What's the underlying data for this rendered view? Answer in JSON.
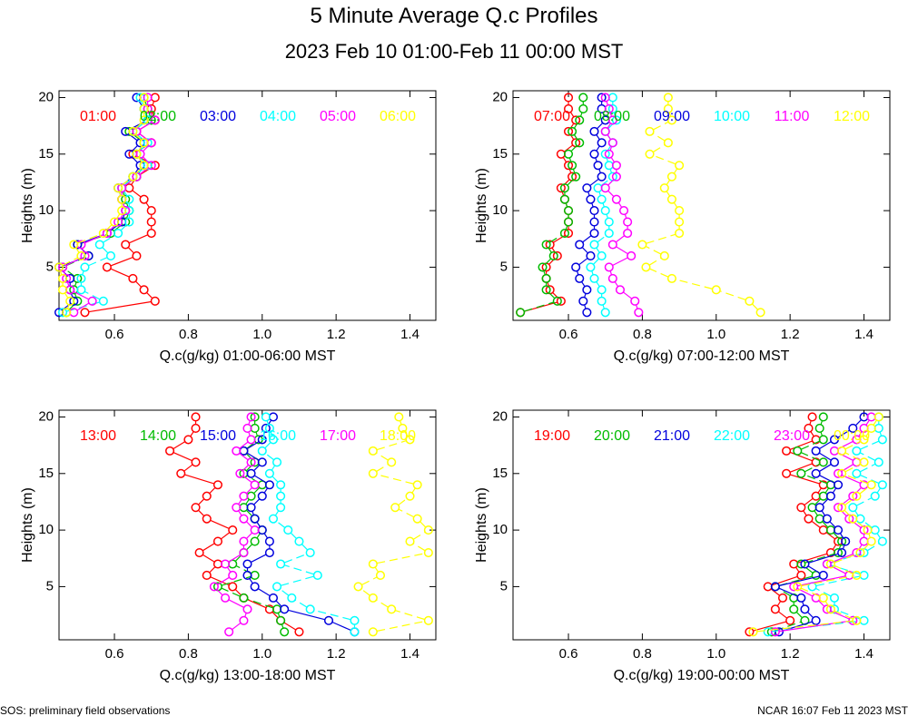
{
  "header": {
    "title": "5 Minute Average Q.c Profiles",
    "subtitle": "2023 Feb 10 01:00-Feb 11 00:00 MST"
  },
  "footer": {
    "left": "SOS: preliminary field observations",
    "right": "NCAR 16:07 Feb 11 2023 MST"
  },
  "colors": [
    "#ff0000",
    "#00bb00",
    "#0000dd",
    "#00ffff",
    "#ff00ff",
    "#ffff00"
  ],
  "chart_data": [
    {
      "type": "line",
      "title": "",
      "xlabel": "Q.c(g/kg) 01:00-06:00 MST",
      "ylabel": "Heights (m)",
      "xlim": [
        0.45,
        1.47
      ],
      "ylim": [
        0.3,
        20.6
      ],
      "xticks": [
        "0.6",
        "0.8",
        "1.0",
        "1.2",
        "1.4"
      ],
      "yticks": [
        "5",
        "10",
        "15",
        "20"
      ],
      "heights": [
        1,
        2,
        3,
        4,
        5,
        6,
        7,
        8,
        9,
        10,
        11,
        12,
        13,
        14,
        15,
        16,
        17,
        18,
        19,
        20
      ],
      "series": [
        {
          "name": "01:00",
          "values": [
            0.52,
            0.71,
            0.68,
            0.65,
            0.58,
            0.66,
            0.63,
            0.7,
            0.7,
            0.7,
            0.68,
            0.64,
            0.66,
            0.71,
            0.65,
            0.7,
            0.66,
            0.71,
            0.7,
            0.71
          ]
        },
        {
          "name": "02:00",
          "values": [
            0.47,
            0.5,
            0.49,
            0.5,
            0.46,
            0.53,
            0.5,
            0.59,
            0.63,
            0.64,
            0.63,
            0.62,
            0.66,
            0.68,
            0.66,
            0.68,
            0.64,
            0.7,
            0.69,
            0.68
          ]
        },
        {
          "name": "03:00",
          "values": [
            0.45,
            0.49,
            0.48,
            0.48,
            0.45,
            0.53,
            0.5,
            0.58,
            0.62,
            0.63,
            0.62,
            0.61,
            0.65,
            0.67,
            0.64,
            0.67,
            0.63,
            0.69,
            0.68,
            0.66
          ]
        },
        {
          "name": "04:00",
          "values": [
            0.46,
            0.57,
            0.51,
            0.51,
            0.52,
            0.59,
            0.56,
            0.61,
            0.64,
            0.64,
            0.64,
            0.62,
            0.65,
            0.69,
            0.66,
            0.69,
            0.65,
            0.69,
            0.68,
            0.67
          ]
        },
        {
          "name": "05:00",
          "values": [
            0.49,
            0.54,
            0.48,
            0.47,
            0.46,
            0.52,
            0.51,
            0.58,
            0.61,
            0.63,
            0.62,
            0.62,
            0.66,
            0.7,
            0.67,
            0.7,
            0.66,
            0.71,
            0.69,
            0.69
          ]
        },
        {
          "name": "06:00",
          "values": [
            0.47,
            0.48,
            0.46,
            0.46,
            0.45,
            0.51,
            0.49,
            0.57,
            0.6,
            0.62,
            0.62,
            0.61,
            0.65,
            0.68,
            0.66,
            0.68,
            0.65,
            0.68,
            0.68,
            0.68
          ]
        }
      ]
    },
    {
      "type": "line",
      "title": "",
      "xlabel": "Q.c(g/kg) 07:00-12:00 MST",
      "ylabel": "Heights (m)",
      "xlim": [
        0.45,
        1.47
      ],
      "ylim": [
        0.3,
        20.6
      ],
      "xticks": [
        "0.6",
        "0.8",
        "1.0",
        "1.2",
        "1.4"
      ],
      "yticks": [
        "5",
        "10",
        "15",
        "20"
      ],
      "heights": [
        1,
        2,
        3,
        4,
        5,
        6,
        7,
        8,
        9,
        10,
        11,
        12,
        13,
        14,
        15,
        16,
        17,
        18,
        19,
        20
      ],
      "series": [
        {
          "name": "07:00",
          "values": [
            0.47,
            0.58,
            0.55,
            0.54,
            0.54,
            0.57,
            0.55,
            0.6,
            0.6,
            0.6,
            0.59,
            0.58,
            0.61,
            0.6,
            0.58,
            0.62,
            0.6,
            0.62,
            0.6,
            0.6
          ]
        },
        {
          "name": "08:00",
          "values": [
            0.47,
            0.57,
            0.54,
            0.54,
            0.53,
            0.56,
            0.54,
            0.59,
            0.6,
            0.6,
            0.59,
            0.59,
            0.62,
            0.61,
            0.6,
            0.63,
            0.61,
            0.63,
            0.64,
            0.64
          ]
        },
        {
          "name": "09:00",
          "values": [
            0.65,
            0.64,
            0.65,
            0.63,
            0.62,
            0.66,
            0.63,
            0.67,
            0.67,
            0.67,
            0.66,
            0.65,
            0.69,
            0.68,
            0.67,
            0.69,
            0.67,
            0.7,
            0.69,
            0.69
          ]
        },
        {
          "name": "10:00",
          "values": [
            0.7,
            0.69,
            0.69,
            0.67,
            0.66,
            0.69,
            0.67,
            0.71,
            0.71,
            0.7,
            0.69,
            0.68,
            0.72,
            0.71,
            0.7,
            0.72,
            0.7,
            0.73,
            0.72,
            0.72
          ]
        },
        {
          "name": "11:00",
          "values": [
            0.79,
            0.78,
            0.74,
            0.72,
            0.71,
            0.77,
            0.72,
            0.76,
            0.76,
            0.75,
            0.73,
            0.7,
            0.73,
            0.73,
            0.71,
            0.72,
            0.7,
            0.72,
            0.71,
            0.7
          ]
        },
        {
          "name": "12:00",
          "values": [
            1.12,
            1.09,
            1.0,
            0.88,
            0.81,
            0.86,
            0.8,
            0.9,
            0.9,
            0.9,
            0.88,
            0.86,
            0.88,
            0.9,
            0.82,
            0.87,
            0.82,
            0.88,
            0.87,
            0.87
          ]
        }
      ]
    },
    {
      "type": "line",
      "title": "",
      "xlabel": "Q.c(g/kg) 13:00-18:00 MST",
      "ylabel": "Heights (m)",
      "xlim": [
        0.45,
        1.47
      ],
      "ylim": [
        0.3,
        20.6
      ],
      "xticks": [
        "0.6",
        "0.8",
        "1.0",
        "1.2",
        "1.4"
      ],
      "yticks": [
        "5",
        "10",
        "15",
        "20"
      ],
      "heights": [
        1,
        2,
        3,
        4,
        5,
        6,
        7,
        8,
        9,
        10,
        11,
        12,
        13,
        14,
        15,
        16,
        17,
        18,
        19,
        20
      ],
      "series": [
        {
          "name": "13:00",
          "values": [
            1.1,
            1.05,
            1.02,
            0.95,
            0.92,
            0.85,
            0.88,
            0.83,
            0.88,
            0.92,
            0.85,
            0.82,
            0.85,
            0.88,
            0.78,
            0.82,
            0.75,
            0.8,
            0.82,
            0.82
          ]
        },
        {
          "name": "14:00",
          "values": [
            1.06,
            1.05,
            1.04,
            0.95,
            0.88,
            0.98,
            0.92,
            0.95,
            0.98,
            1.0,
            0.98,
            0.95,
            0.97,
            1.0,
            0.95,
            0.98,
            0.95,
            0.99,
            0.98,
            0.98
          ]
        },
        {
          "name": "15:00",
          "values": [
            1.25,
            1.18,
            1.06,
            1.03,
            0.98,
            0.96,
            0.96,
            1.02,
            1.02,
            1.0,
            0.98,
            0.97,
            1.0,
            1.02,
            0.97,
            1.0,
            0.95,
            1.0,
            1.01,
            1.03
          ]
        },
        {
          "name": "16:00",
          "values": [
            1.25,
            1.25,
            1.13,
            1.08,
            1.04,
            1.15,
            1.05,
            1.13,
            1.1,
            1.07,
            1.03,
            1.05,
            1.05,
            1.05,
            1.02,
            1.04,
            1.0,
            1.03,
            1.02,
            1.01
          ]
        },
        {
          "name": "17:00",
          "values": [
            0.91,
            0.95,
            0.96,
            0.9,
            0.87,
            0.92,
            0.9,
            0.95,
            0.95,
            0.98,
            0.95,
            0.93,
            0.95,
            0.98,
            0.94,
            0.97,
            0.93,
            0.97,
            0.96,
            0.97
          ]
        },
        {
          "name": "18:00",
          "values": [
            1.3,
            1.45,
            1.35,
            1.3,
            1.26,
            1.32,
            1.3,
            1.45,
            1.4,
            1.45,
            1.42,
            1.36,
            1.4,
            1.42,
            1.3,
            1.35,
            1.3,
            1.4,
            1.38,
            1.37
          ]
        }
      ]
    },
    {
      "type": "line",
      "title": "",
      "xlabel": "Q.c(g/kg) 19:00-00:00 MST",
      "ylabel": "Heights (m)",
      "xlim": [
        0.45,
        1.47
      ],
      "ylim": [
        0.3,
        20.6
      ],
      "xticks": [
        "0.6",
        "0.8",
        "1.0",
        "1.2",
        "1.4"
      ],
      "yticks": [
        "5",
        "10",
        "15",
        "20"
      ],
      "heights": [
        1,
        2,
        3,
        4,
        5,
        6,
        7,
        8,
        9,
        10,
        11,
        12,
        13,
        14,
        15,
        16,
        17,
        18,
        19,
        20
      ],
      "series": [
        {
          "name": "19:00",
          "values": [
            1.09,
            1.2,
            1.16,
            1.18,
            1.14,
            1.23,
            1.21,
            1.31,
            1.33,
            1.29,
            1.25,
            1.23,
            1.27,
            1.29,
            1.19,
            1.27,
            1.19,
            1.27,
            1.25,
            1.26
          ]
        },
        {
          "name": "20:00",
          "values": [
            1.15,
            1.24,
            1.21,
            1.21,
            1.16,
            1.27,
            1.23,
            1.33,
            1.34,
            1.31,
            1.28,
            1.26,
            1.29,
            1.31,
            1.23,
            1.29,
            1.22,
            1.29,
            1.28,
            1.29
          ]
        },
        {
          "name": "21:00",
          "values": [
            1.17,
            1.27,
            1.24,
            1.23,
            1.16,
            1.29,
            1.24,
            1.34,
            1.35,
            1.33,
            1.3,
            1.28,
            1.31,
            1.33,
            1.27,
            1.32,
            1.27,
            1.32,
            1.37,
            1.4
          ]
        },
        {
          "name": "22:00",
          "values": [
            1.14,
            1.4,
            1.32,
            1.32,
            1.26,
            1.4,
            1.3,
            1.4,
            1.45,
            1.43,
            1.39,
            1.37,
            1.43,
            1.45,
            1.38,
            1.44,
            1.38,
            1.45,
            1.44,
            1.44
          ]
        },
        {
          "name": "23:00",
          "values": [
            1.16,
            1.37,
            1.3,
            1.27,
            1.21,
            1.36,
            1.3,
            1.38,
            1.4,
            1.4,
            1.36,
            1.33,
            1.37,
            1.4,
            1.33,
            1.38,
            1.32,
            1.38,
            1.4,
            1.42
          ]
        },
        {
          "name": "00:00",
          "values": [
            1.1,
            1.38,
            1.31,
            1.29,
            1.22,
            1.38,
            1.31,
            1.39,
            1.42,
            1.41,
            1.37,
            1.34,
            1.38,
            1.42,
            1.34,
            1.4,
            1.34,
            1.4,
            1.42,
            1.44
          ]
        }
      ]
    }
  ]
}
